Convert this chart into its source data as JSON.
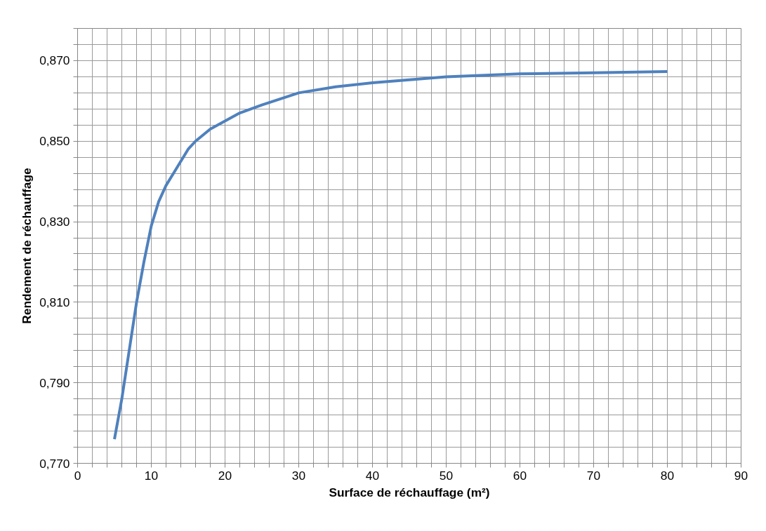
{
  "chart_data": {
    "type": "line",
    "xlabel": "Surface de réchauffage (m²)",
    "ylabel": "Rendement de réchauffage",
    "x": [
      5,
      6,
      7,
      8,
      9,
      10,
      11,
      12,
      13,
      14,
      15,
      16,
      18,
      20,
      22,
      25,
      30,
      35,
      40,
      50,
      60,
      70,
      80
    ],
    "series": [
      {
        "color": "#4f81bd",
        "values": [
          0.776,
          0.786,
          0.798,
          0.81,
          0.82,
          0.829,
          0.835,
          0.839,
          0.842,
          0.845,
          0.848,
          0.85,
          0.853,
          0.855,
          0.857,
          0.859,
          0.862,
          0.8635,
          0.8645,
          0.866,
          0.8667,
          0.867,
          0.8673
        ]
      }
    ],
    "xlim": [
      0,
      90
    ],
    "ylim": [
      0.77,
      0.878
    ],
    "xticks": [
      0,
      {
        "value": 2,
        "label": null
      },
      {
        "value": 4,
        "label": null
      },
      {
        "value": 6,
        "label": null
      },
      {
        "value": 8,
        "label": null
      },
      10,
      {
        "value": 12,
        "label": null
      },
      {
        "value": 14,
        "label": null
      },
      {
        "value": 16,
        "label": null
      },
      {
        "value": 18,
        "label": null
      },
      20,
      {
        "value": 22,
        "label": null
      },
      {
        "value": 24,
        "label": null
      },
      {
        "value": 26,
        "label": null
      },
      {
        "value": 28,
        "label": null
      },
      30,
      {
        "value": 32,
        "label": null
      },
      {
        "value": 34,
        "label": null
      },
      {
        "value": 36,
        "label": null
      },
      {
        "value": 38,
        "label": null
      },
      40,
      {
        "value": 42,
        "label": null
      },
      {
        "value": 44,
        "label": null
      },
      {
        "value": 46,
        "label": null
      },
      {
        "value": 48,
        "label": null
      },
      50,
      {
        "value": 52,
        "label": null
      },
      {
        "value": 54,
        "label": null
      },
      {
        "value": 56,
        "label": null
      },
      {
        "value": 58,
        "label": null
      },
      60,
      {
        "value": 62,
        "label": null
      },
      {
        "value": 64,
        "label": null
      },
      {
        "value": 66,
        "label": null
      },
      {
        "value": 68,
        "label": null
      },
      70,
      {
        "value": 72,
        "label": null
      },
      {
        "value": 74,
        "label": null
      },
      {
        "value": 76,
        "label": null
      },
      {
        "value": 78,
        "label": null
      },
      80,
      {
        "value": 82,
        "label": null
      },
      {
        "value": 84,
        "label": null
      },
      {
        "value": 86,
        "label": null
      },
      {
        "value": 88,
        "label": null
      },
      90
    ],
    "yticks": [
      {
        "value": 0.77,
        "label": "0,770"
      },
      {
        "value": 0.774,
        "label": null
      },
      {
        "value": 0.778,
        "label": null
      },
      {
        "value": 0.782,
        "label": null
      },
      {
        "value": 0.786,
        "label": null
      },
      {
        "value": 0.79,
        "label": "0,790"
      },
      {
        "value": 0.794,
        "label": null
      },
      {
        "value": 0.798,
        "label": null
      },
      {
        "value": 0.802,
        "label": null
      },
      {
        "value": 0.806,
        "label": null
      },
      {
        "value": 0.81,
        "label": "0,810"
      },
      {
        "value": 0.814,
        "label": null
      },
      {
        "value": 0.818,
        "label": null
      },
      {
        "value": 0.822,
        "label": null
      },
      {
        "value": 0.826,
        "label": null
      },
      {
        "value": 0.83,
        "label": "0,830"
      },
      {
        "value": 0.834,
        "label": null
      },
      {
        "value": 0.838,
        "label": null
      },
      {
        "value": 0.842,
        "label": null
      },
      {
        "value": 0.846,
        "label": null
      },
      {
        "value": 0.85,
        "label": "0,850"
      },
      {
        "value": 0.854,
        "label": null
      },
      {
        "value": 0.858,
        "label": null
      },
      {
        "value": 0.862,
        "label": null
      },
      {
        "value": 0.866,
        "label": null
      },
      {
        "value": 0.87,
        "label": "0,870"
      },
      {
        "value": 0.874,
        "label": null
      },
      {
        "value": 0.878,
        "label": null
      }
    ],
    "grid": true,
    "marker": "none",
    "line_style": "solid"
  }
}
